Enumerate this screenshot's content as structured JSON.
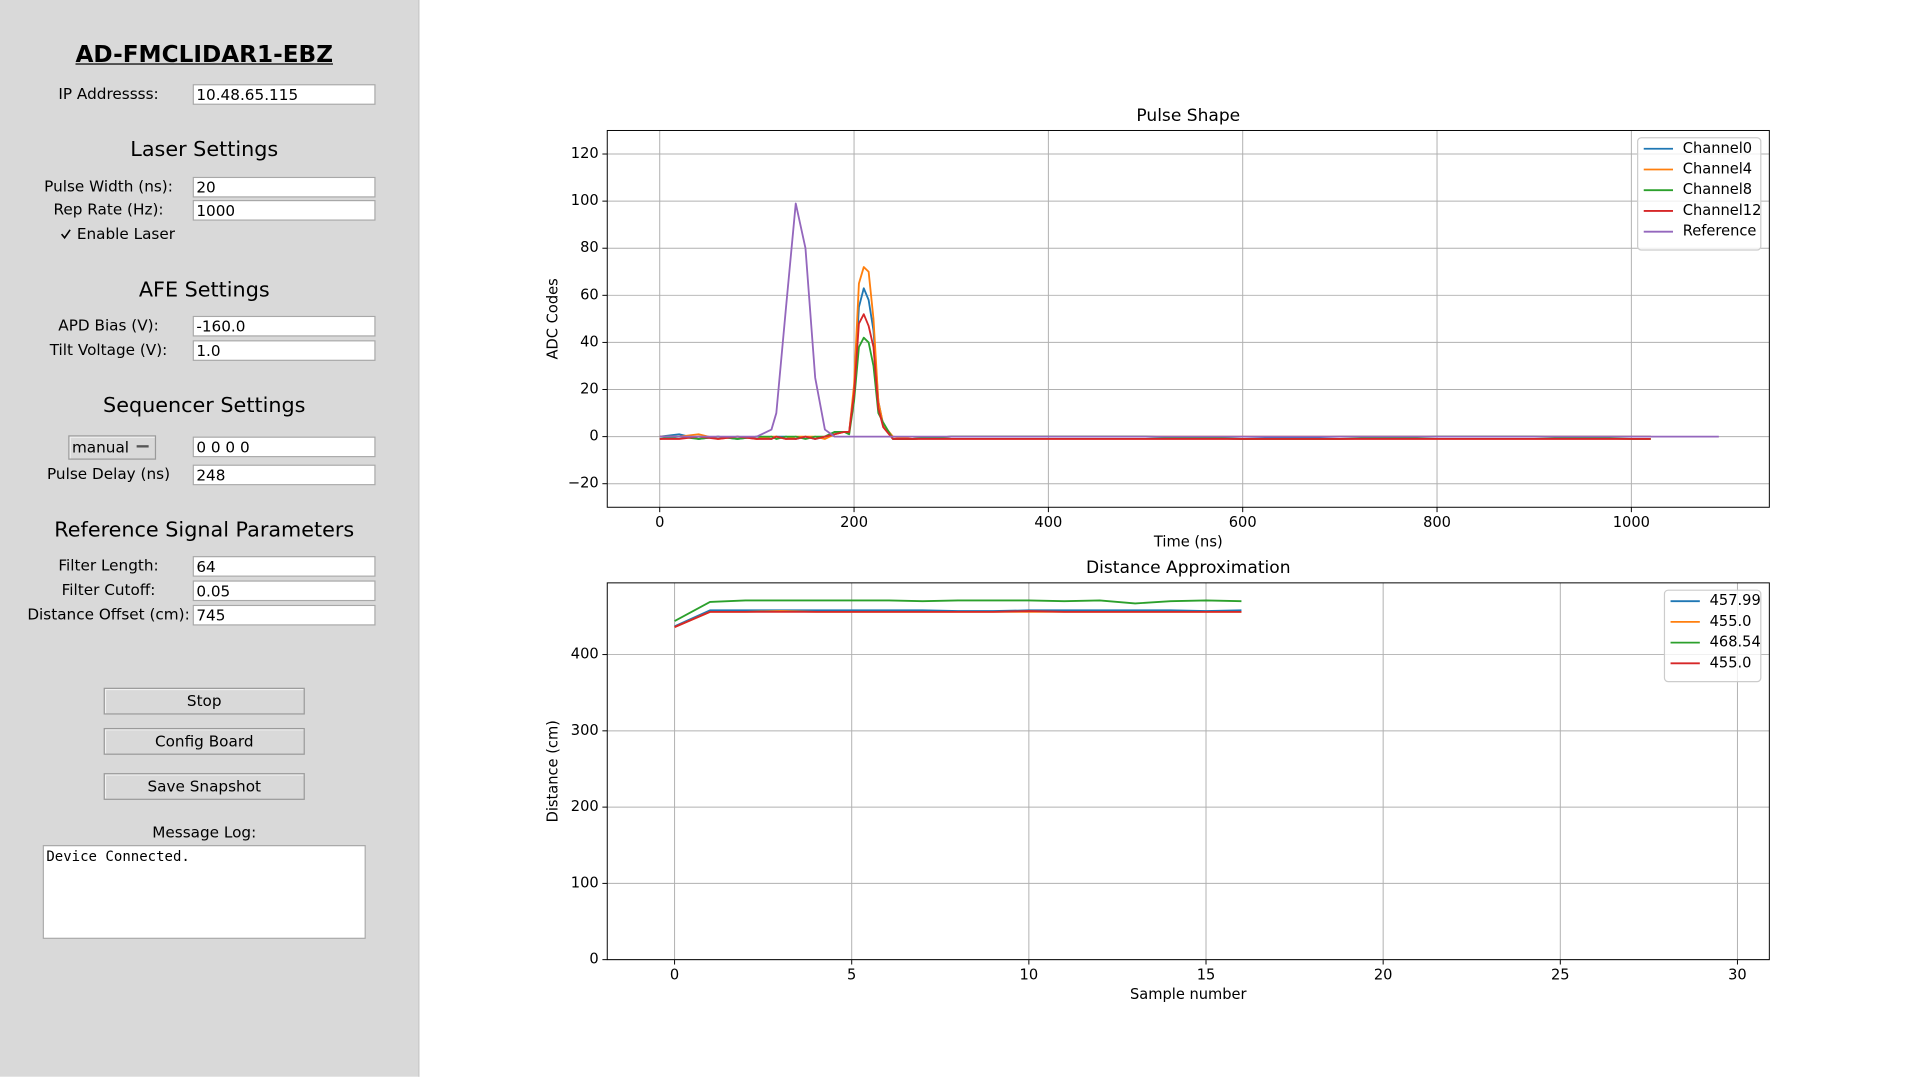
{
  "panel": {
    "title": "AD-FMCLIDAR1-EBZ",
    "ip": {
      "label": "IP Addressss:",
      "value": "10.48.65.115"
    },
    "laser": {
      "heading": "Laser Settings",
      "pulse_width": {
        "label": "Pulse Width (ns):",
        "value": "20"
      },
      "rep_rate": {
        "label": "Rep Rate (Hz):",
        "value": "1000"
      },
      "enable": "Enable Laser"
    },
    "afe": {
      "heading": "AFE Settings",
      "apd_bias": {
        "label": "APD Bias (V):",
        "value": "-160.0"
      },
      "tilt": {
        "label": "Tilt Voltage (V):",
        "value": "1.0"
      }
    },
    "sequencer": {
      "heading": "Sequencer Settings",
      "mode": "manual",
      "sequence": "0 0 0 0",
      "pulse_delay": {
        "label": "Pulse Delay (ns)",
        "value": "248"
      }
    },
    "reference": {
      "heading": "Reference Signal Parameters",
      "filter_length": {
        "label": "Filter Length:",
        "value": "64"
      },
      "filter_cutoff": {
        "label": "Filter Cutoff:",
        "value": "0.05"
      },
      "distance_offset": {
        "label": "Distance Offset (cm):",
        "value": "745"
      }
    },
    "buttons": [
      "Stop",
      "Config Board",
      "Save Snapshot"
    ],
    "log": {
      "label": "Message Log:",
      "text": "Device Connected."
    }
  },
  "chart_data": [
    {
      "type": "line",
      "title": "Pulse Shape",
      "x_label": "Time (ns)",
      "y_label": "ADC Codes",
      "x": [
        0,
        20,
        40,
        60,
        80,
        100,
        115,
        120,
        130,
        140,
        150,
        160,
        170,
        180,
        190,
        195,
        200,
        205,
        210,
        215,
        220,
        225,
        230,
        240,
        260,
        300,
        400,
        500,
        600,
        700,
        800,
        900,
        1000,
        1020,
        1090
      ],
      "series": [
        {
          "name": "Channel0",
          "color": "#1f77b4",
          "values": [
            0,
            1,
            -1,
            0,
            -1,
            0,
            -1,
            0,
            0,
            -1,
            0,
            -1,
            0,
            2,
            2,
            2,
            20,
            55,
            63,
            58,
            45,
            15,
            5,
            -1,
            -1,
            0,
            0,
            0,
            -1,
            0,
            0,
            0,
            0,
            0,
            null
          ]
        },
        {
          "name": "Channel4",
          "color": "#ff7f0e",
          "values": [
            0,
            0,
            1,
            -1,
            0,
            -1,
            0,
            0,
            -1,
            0,
            0,
            0,
            -1,
            1,
            2,
            2,
            22,
            65,
            72,
            70,
            50,
            15,
            5,
            0,
            -1,
            0,
            0,
            0,
            0,
            0,
            0,
            0,
            0,
            0,
            null
          ]
        },
        {
          "name": "Channel8",
          "color": "#2ca02c",
          "values": [
            -1,
            0,
            -1,
            0,
            -1,
            0,
            0,
            -1,
            0,
            0,
            -1,
            0,
            0,
            2,
            2,
            1,
            15,
            38,
            42,
            40,
            30,
            10,
            6,
            -1,
            -1,
            0,
            0,
            0,
            -1,
            -1,
            0,
            0,
            -1,
            -1,
            null
          ]
        },
        {
          "name": "Channel12",
          "color": "#d62728",
          "values": [
            -1,
            -1,
            0,
            -1,
            0,
            -1,
            -1,
            0,
            -1,
            -1,
            0,
            -1,
            0,
            1,
            2,
            2,
            18,
            48,
            52,
            47,
            38,
            12,
            4,
            -1,
            -1,
            -1,
            -1,
            -1,
            -1,
            -1,
            -1,
            -1,
            -1,
            -1,
            null
          ]
        },
        {
          "name": "Reference",
          "color": "#9467bd",
          "values": [
            0,
            0,
            0,
            0,
            0,
            0,
            3,
            10,
            55,
            99,
            80,
            25,
            3,
            0,
            0,
            0,
            0,
            0,
            0,
            0,
            0,
            0,
            0,
            0,
            0,
            0,
            0,
            0,
            0,
            0,
            0,
            0,
            0,
            0,
            0
          ]
        }
      ],
      "xlim": [
        -54,
        1142
      ],
      "xticks": [
        0,
        200,
        400,
        600,
        800,
        1000
      ],
      "ylim": [
        -30,
        130
      ],
      "yticks": [
        {
          "value": -20,
          "label": "−20"
        },
        0,
        20,
        40,
        60,
        80,
        100,
        120
      ],
      "grid": true,
      "legend": "upper right"
    },
    {
      "type": "line",
      "title": "Distance Approximation",
      "x_label": "Sample number",
      "y_label": "Distance (cm)",
      "x": [
        0,
        1,
        2,
        3,
        4,
        5,
        6,
        7,
        8,
        9,
        10,
        11,
        12,
        13,
        14,
        15,
        16
      ],
      "series": [
        {
          "name": "457.99",
          "color": "#1f77b4",
          "values": [
            437,
            458,
            458,
            458,
            458,
            458,
            458,
            458,
            457,
            457,
            458,
            458,
            458,
            458,
            458,
            457,
            458
          ]
        },
        {
          "name": "455.0",
          "color": "#ff7f0e",
          "values": [
            436,
            456,
            456,
            457,
            456,
            456,
            456,
            456,
            456,
            456,
            456,
            456,
            456,
            456,
            456,
            456,
            456
          ]
        },
        {
          "name": "468.54",
          "color": "#2ca02c",
          "values": [
            444,
            469,
            471,
            471,
            471,
            471,
            471,
            470,
            471,
            471,
            471,
            470,
            471,
            467,
            470,
            471,
            470
          ]
        },
        {
          "name": "455.0",
          "color": "#d62728",
          "values": [
            436,
            456,
            456,
            456,
            456,
            456,
            456,
            456,
            456,
            456,
            457,
            456,
            456,
            456,
            456,
            456,
            456
          ]
        }
      ],
      "xlim": [
        -1.9,
        30.9
      ],
      "xticks": [
        0,
        5,
        10,
        15,
        20,
        25,
        30
      ],
      "ylim": [
        0,
        494
      ],
      "yticks": [
        0,
        100,
        200,
        300,
        400
      ],
      "grid": true,
      "legend": "upper right"
    }
  ]
}
